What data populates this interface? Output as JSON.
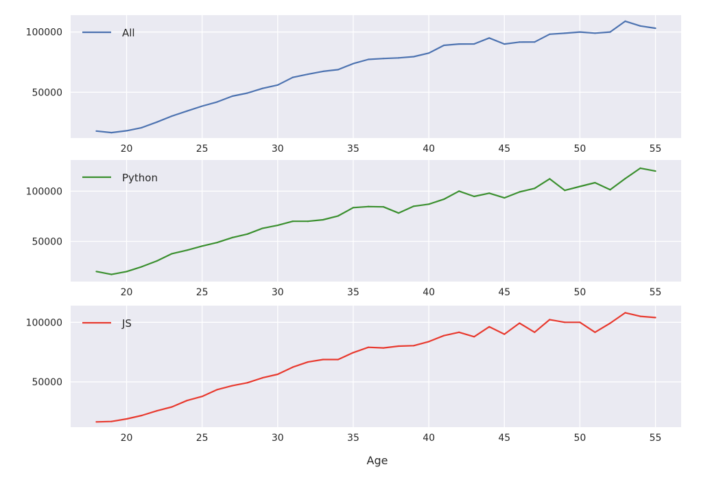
{
  "chart_data": {
    "type": "line",
    "xlabel": "Age",
    "x": [
      18,
      19,
      20,
      21,
      22,
      23,
      24,
      25,
      26,
      27,
      28,
      29,
      30,
      31,
      32,
      33,
      34,
      35,
      36,
      37,
      38,
      39,
      40,
      41,
      42,
      43,
      44,
      45,
      46,
      47,
      48,
      49,
      50,
      51,
      52,
      53,
      54,
      55
    ],
    "x_ticks": [
      "20",
      "25",
      "30",
      "35",
      "40",
      "45",
      "50",
      "55"
    ],
    "x_tick_values": [
      20,
      25,
      30,
      35,
      40,
      45,
      50,
      55
    ],
    "xlim": [
      16.3,
      56.7
    ],
    "grid": true,
    "style": "seaborn darkgrid",
    "panels": [
      {
        "name": "All",
        "color": "#4c72b0",
        "ylim": [
          12000,
          114000
        ],
        "y_ticks": [
          "50000",
          "100000"
        ],
        "y_tick_values": [
          50000,
          100000
        ],
        "legend": "upper left",
        "values": [
          17784,
          16500,
          18012,
          20628,
          25206,
          30252,
          34368,
          38496,
          42000,
          46752,
          49320,
          53200,
          56000,
          62316,
          64928,
          67317,
          68748,
          73752,
          77232,
          78000,
          78508,
          79536,
          82488,
          88935,
          90000,
          90056,
          95000,
          90000,
          91633,
          91660,
          98150,
          98964,
          100000,
          98988,
          100000,
          108923,
          105000,
          103117
        ]
      },
      {
        "name": "Python",
        "color": "#3a8f2e",
        "ylim": [
          10000,
          131000
        ],
        "y_ticks": [
          "50000",
          "100000"
        ],
        "y_tick_values": [
          50000,
          100000
        ],
        "legend": "upper left",
        "values": [
          20046,
          17100,
          20000,
          24744,
          30500,
          37732,
          41247,
          45372,
          48876,
          53850,
          57287,
          63016,
          65998,
          70003,
          70000,
          71496,
          75370,
          83640,
          84666,
          84392,
          78254,
          85000,
          87038,
          91991,
          100000,
          94796,
          97962,
          93302,
          99240,
          102736,
          112285,
          100771,
          104708,
          108423,
          101407,
          112542,
          122870,
          120000
        ]
      },
      {
        "name": "JS",
        "color": "#e8392e",
        "ylim": [
          12000,
          114000
        ],
        "y_ticks": [
          "50000",
          "100000"
        ],
        "y_tick_values": [
          50000,
          100000
        ],
        "legend": "upper left",
        "values": [
          16446,
          16791,
          18942,
          21780,
          25704,
          29000,
          34372,
          37810,
          43515,
          46823,
          49293,
          53437,
          56373,
          62375,
          66674,
          68745,
          68746,
          74583,
          79000,
          78508,
          79996,
          80403,
          83820,
          88833,
          91660,
          87892,
          96243,
          90000,
          99313,
          91660,
          102264,
          100000,
          100000,
          91660,
          99240,
          108000,
          105000,
          104000
        ]
      }
    ]
  }
}
